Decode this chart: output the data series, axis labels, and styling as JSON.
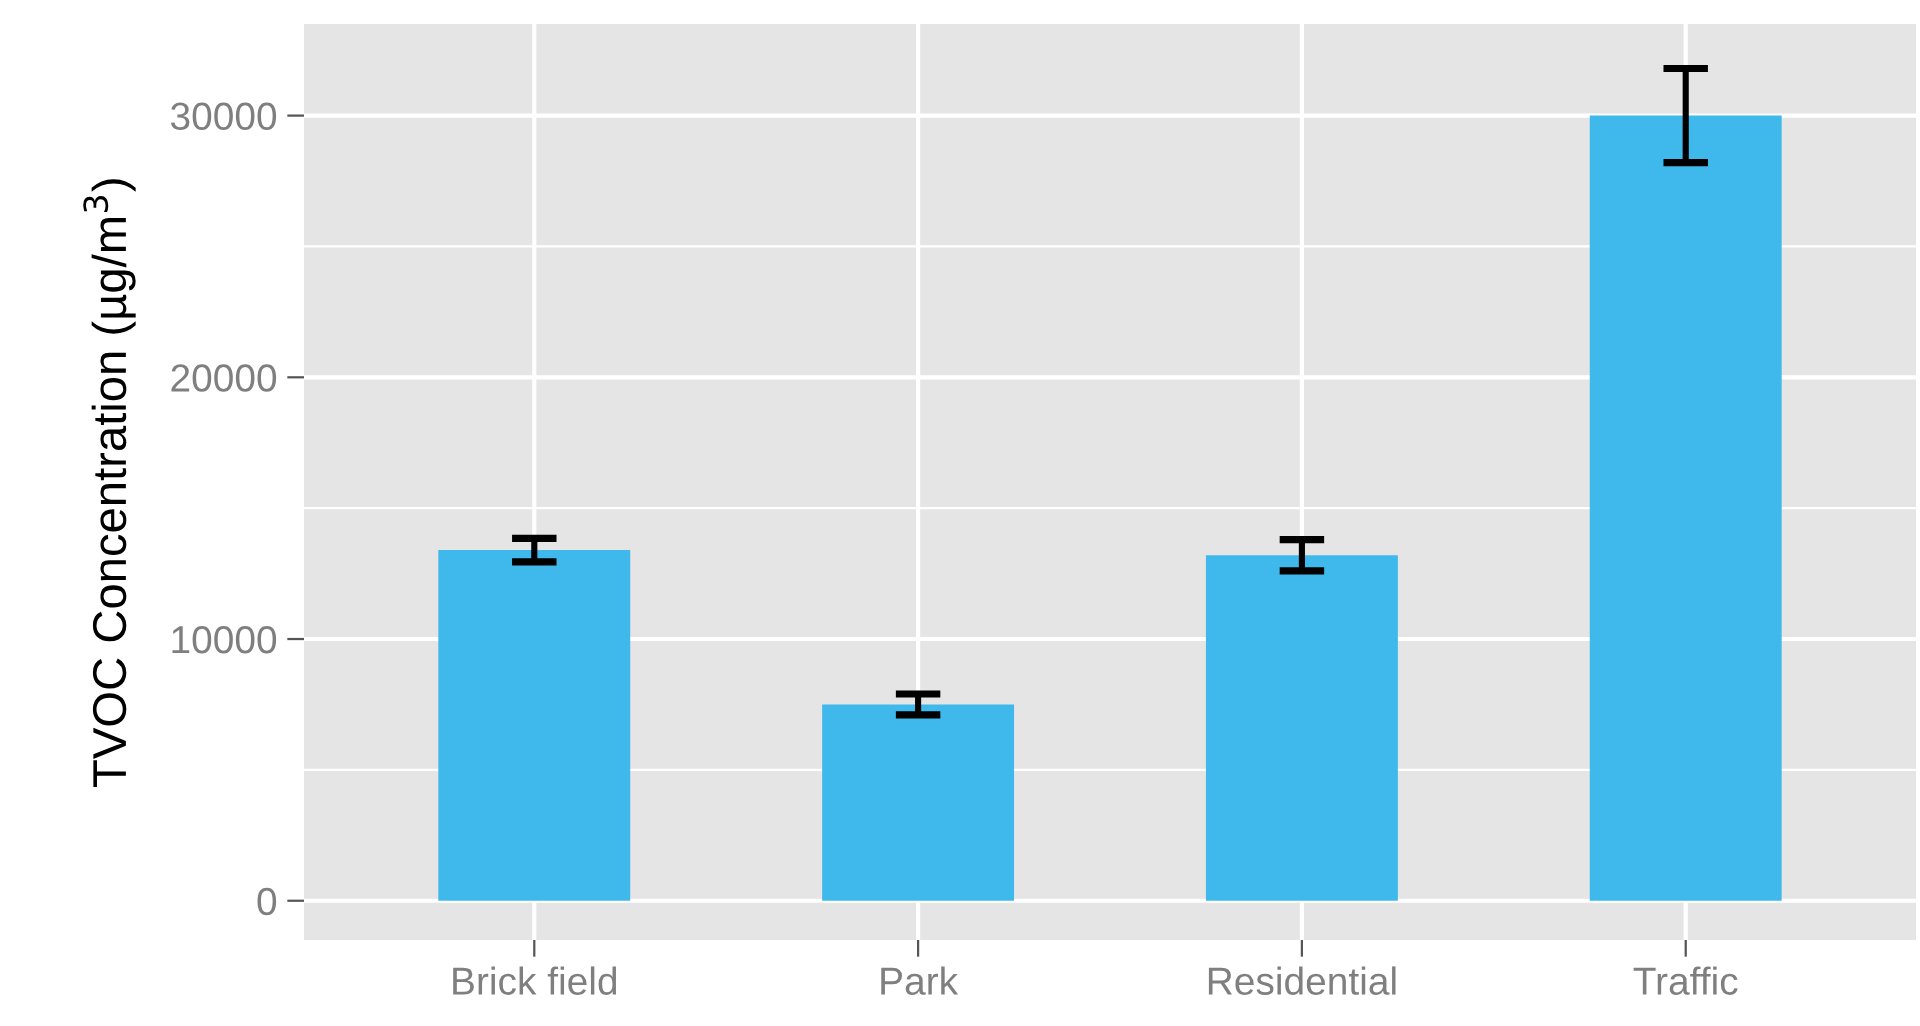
{
  "chart_data": {
    "type": "bar",
    "ylabel": "TVOC Concentration (µg/m$^{3}$)",
    "categories": [
      "Brick field",
      "Park",
      "Residential",
      "Traffic"
    ],
    "values": [
      13400,
      7500,
      13200,
      30000
    ],
    "errors": [
      450,
      400,
      600,
      1800
    ],
    "color": "#3fb8eb",
    "ylim": [
      -1500,
      33500
    ],
    "yticks": [
      0,
      {
        "value": 5000,
        "label": null
      },
      10000,
      {
        "value": 15000,
        "label": null
      },
      20000,
      {
        "value": 25000,
        "label": null
      },
      30000
    ],
    "grid": true
  }
}
